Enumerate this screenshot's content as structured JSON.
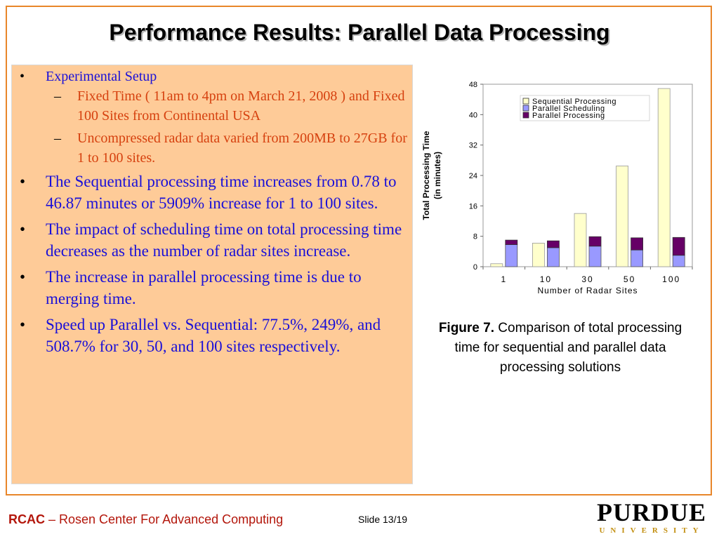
{
  "slide": {
    "title": "Performance Results: Parallel Data Processing",
    "bullets": [
      {
        "text": "Experimental Setup",
        "sub": [
          "Fixed Time ( 11am to 4pm on March 21, 2008 ) and  Fixed 100 Sites from Continental USA",
          "Uncompressed radar data varied from 200MB to 27GB for 1 to 100 sites."
        ]
      },
      {
        "text": "The Sequential processing time  increases from 0.78 to 46.87 minutes or 5909% increase for 1 to 100 sites."
      },
      {
        "text": "The impact of scheduling time on total processing time decreases as the number of radar sites increase."
      },
      {
        "text": "The increase in parallel processing time is due to merging time."
      },
      {
        "text": "Speed up Parallel vs. Sequential: 77.5%, 249%, and 508.7% for 30, 50, and 100 sites respectively."
      }
    ],
    "bullet_glyph": "•",
    "dash_glyph": "–",
    "caption": {
      "bold": "Figure 7.",
      "text": " Comparison of total processing time for sequential and parallel data processing solutions"
    },
    "footer": {
      "rcac": "RCAC",
      "rest": " – Rosen Center For Advanced Computing",
      "slide_no": "Slide 13/19"
    },
    "logo": {
      "word": "PURDUE",
      "sub": "UNIVERSITY"
    }
  },
  "colors": {
    "sequential": "#ffffcc",
    "scheduling": "#9999ff",
    "processing": "#660066",
    "accent": "#e8862a"
  },
  "chart_data": {
    "type": "bar",
    "categories": [
      "1",
      "10",
      "30",
      "50",
      "100"
    ],
    "series": [
      {
        "name": "Sequential Processing",
        "values": [
          0.78,
          6.2,
          14.0,
          26.5,
          46.87
        ]
      },
      {
        "name": "Parallel Scheduling",
        "values": [
          5.8,
          5.0,
          5.4,
          4.4,
          3.0
        ]
      },
      {
        "name": "Parallel Processing",
        "values": [
          1.2,
          1.8,
          2.5,
          3.2,
          4.7
        ]
      }
    ],
    "stacked_series": [
      "Parallel Scheduling",
      "Parallel Processing"
    ],
    "xlabel": "Number of Radar Sites",
    "ylabel": [
      "Total Processing Time",
      "(in minutes)"
    ],
    "yticks": [
      0,
      8,
      16,
      24,
      32,
      40,
      48
    ],
    "ylim": [
      0,
      48
    ],
    "legend": "top-right",
    "grid": false
  }
}
